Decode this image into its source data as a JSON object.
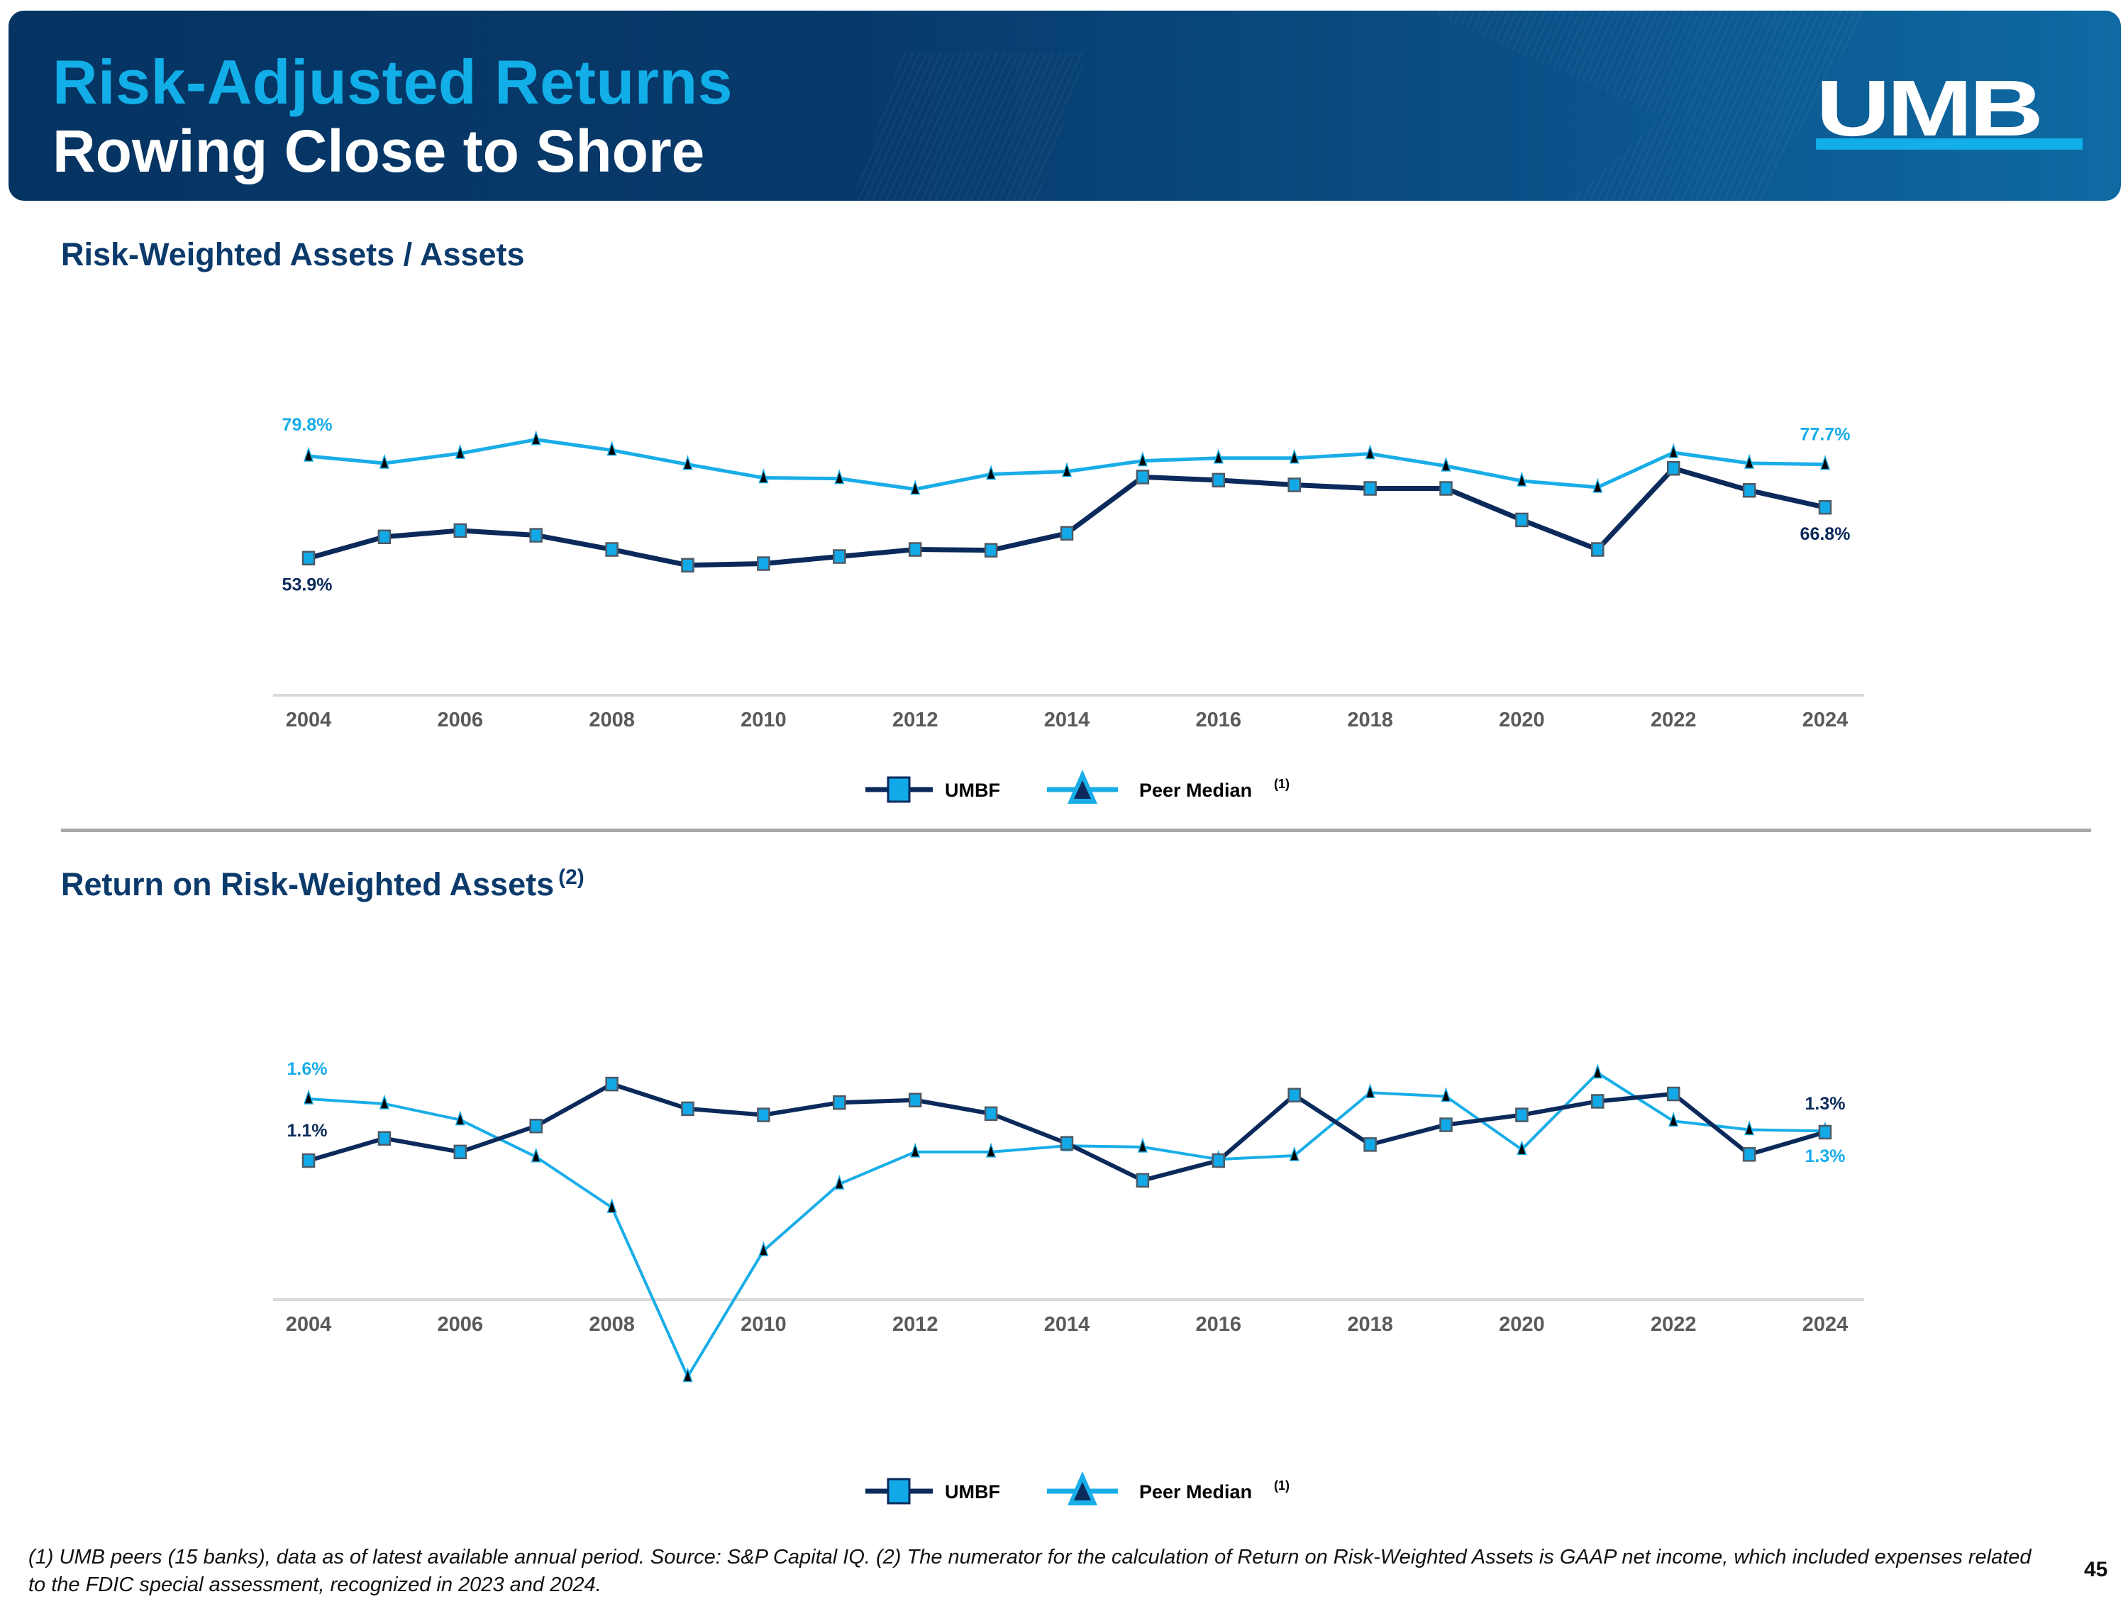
{
  "header": {
    "title": "Risk-Adjusted Returns",
    "subtitle": "Rowing Close to Shore",
    "logo_text": "UMB"
  },
  "colors": {
    "umbf_line": "#0b2a5b",
    "umbf_marker": "#12a9e8",
    "peer_line": "#19ade8",
    "peer_marker": "#000000",
    "title_accent": "#12aee8",
    "section_title": "#0b3a6b"
  },
  "legend": {
    "umbf": "UMBF",
    "peer": "Peer Median",
    "peer_sup": "(1)"
  },
  "chart_data": [
    {
      "type": "line",
      "title": "Risk-Weighted Assets / Assets",
      "xlabel": "",
      "ylabel": "",
      "x": [
        2004,
        2005,
        2006,
        2007,
        2008,
        2009,
        2010,
        2011,
        2012,
        2013,
        2014,
        2015,
        2016,
        2017,
        2018,
        2019,
        2020,
        2021,
        2022,
        2023,
        2024
      ],
      "tick_labels": [
        "2004",
        "2006",
        "2008",
        "2010",
        "2012",
        "2014",
        "2016",
        "2018",
        "2020",
        "2022",
        "2024"
      ],
      "ylim": [
        30,
        90
      ],
      "grid": false,
      "legend": "bottom-center",
      "unit": "%",
      "series": [
        {
          "name": "UMBF",
          "values": [
            53.9,
            59.3,
            60.9,
            59.7,
            56.1,
            52.1,
            52.5,
            54.3,
            56.1,
            55.9,
            60.2,
            74.5,
            73.7,
            72.5,
            71.6,
            71.6,
            63.6,
            56.1,
            76.7,
            71.1,
            66.8
          ],
          "labels": {
            "first": "53.9%",
            "last": "66.8%"
          }
        },
        {
          "name": "Peer Median",
          "values": [
            79.8,
            78.0,
            80.5,
            84.0,
            81.3,
            77.7,
            74.3,
            74.1,
            71.4,
            75.2,
            75.9,
            78.6,
            79.3,
            79.3,
            80.4,
            77.3,
            73.5,
            71.9,
            80.7,
            78.0,
            77.7
          ],
          "labels": {
            "first": "79.8%",
            "last": "77.7%"
          }
        }
      ]
    },
    {
      "type": "line",
      "title": "Return on Risk-Weighted Assets",
      "title_sup": "(2)",
      "xlabel": "",
      "ylabel": "",
      "x": [
        2004,
        2005,
        2006,
        2007,
        2008,
        2009,
        2010,
        2011,
        2012,
        2013,
        2014,
        2015,
        2016,
        2017,
        2018,
        2019,
        2020,
        2021,
        2022,
        2023,
        2024
      ],
      "tick_labels": [
        "2004",
        "2006",
        "2008",
        "2010",
        "2012",
        "2014",
        "2016",
        "2018",
        "2020",
        "2022",
        "2024"
      ],
      "ylim": [
        -1.0,
        2.2
      ],
      "baseline": 0.0,
      "grid": false,
      "legend": "bottom-center",
      "unit": "%",
      "series": [
        {
          "name": "UMBF",
          "values": [
            1.1,
            1.28,
            1.17,
            1.38,
            1.72,
            1.52,
            1.47,
            1.57,
            1.59,
            1.48,
            1.24,
            0.94,
            1.1,
            1.63,
            1.23,
            1.39,
            1.47,
            1.58,
            1.64,
            1.15,
            1.33
          ],
          "labels": {
            "first": "1.1%",
            "last": "1.3%"
          }
        },
        {
          "name": "Peer Median",
          "values": [
            1.6,
            1.56,
            1.43,
            1.13,
            0.72,
            -0.65,
            0.37,
            0.91,
            1.17,
            1.17,
            1.22,
            1.21,
            1.11,
            1.14,
            1.65,
            1.62,
            1.19,
            1.81,
            1.42,
            1.35,
            1.34
          ],
          "labels": {
            "first": "1.6%",
            "last": "1.3%"
          }
        }
      ]
    }
  ],
  "sections": {
    "chart1_title": "Risk-Weighted Assets / Assets",
    "chart2_title": "Return on Risk-Weighted Assets",
    "chart2_title_sup": "(2)"
  },
  "footnote": "(1) UMB peers (15 banks), data as of latest available annual period. Source: S&P Capital IQ. (2) The numerator for the calculation of Return on Risk-Weighted Assets is GAAP net income, which included expenses related to the FDIC special assessment, recognized in 2023 and 2024.",
  "page_number": "45"
}
